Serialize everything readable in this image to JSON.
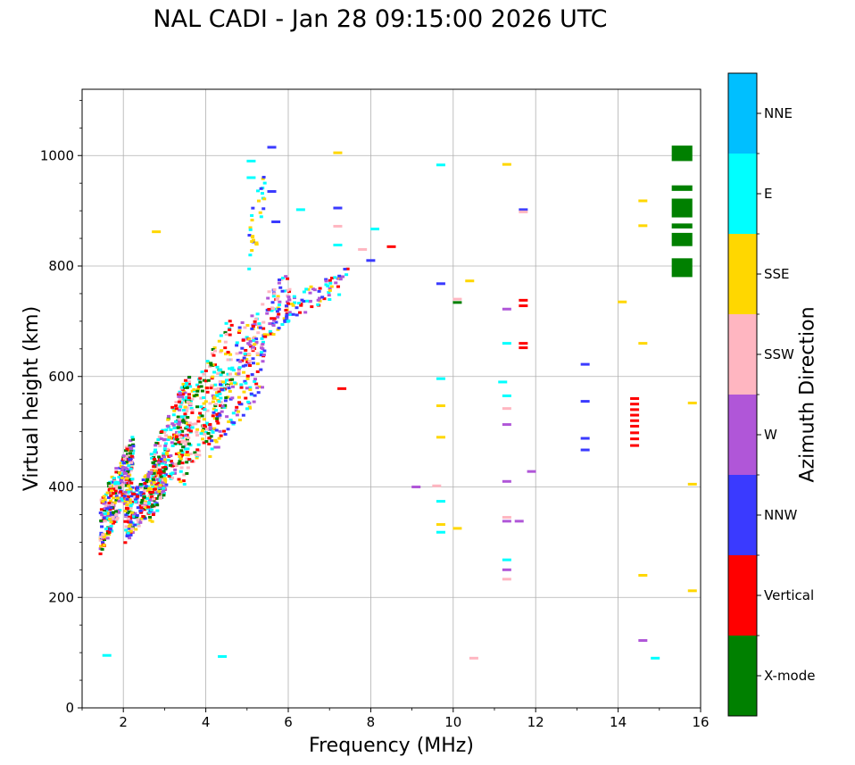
{
  "chart_data": {
    "type": "scatter",
    "title": "NAL CADI - Jan 28 09:15:00 2026 UTC",
    "xlabel": "Frequency (MHz)",
    "ylabel": "Virtual height (km)",
    "xlim": [
      1,
      16
    ],
    "ylim": [
      0,
      1120
    ],
    "xticks": [
      2,
      4,
      6,
      8,
      10,
      12,
      14,
      16
    ],
    "yticks": [
      0,
      200,
      400,
      600,
      800,
      1000
    ],
    "grid": true,
    "colorbar": {
      "label": "Azimuth Direction",
      "categories": [
        {
          "name": "X-mode",
          "color": "#008000"
        },
        {
          "name": "Vertical",
          "color": "#ff0000"
        },
        {
          "name": "NNW",
          "color": "#3a3aff"
        },
        {
          "name": "W",
          "color": "#b056d8"
        },
        {
          "name": "SSW",
          "color": "#ffb6c1"
        },
        {
          "name": "SSE",
          "color": "#ffd700"
        },
        {
          "name": "E",
          "color": "#00ffff"
        },
        {
          "name": "NNE",
          "color": "#00bfff"
        }
      ]
    },
    "clusters": [
      {
        "x_range": [
          1.4,
          2.2
        ],
        "y_range": [
          280,
          500
        ],
        "count": 320,
        "categories": [
          "Vertical",
          "SSE",
          "NNW",
          "SSW",
          "E",
          "X-mode",
          "W"
        ]
      },
      {
        "x_range": [
          2.0,
          3.0
        ],
        "y_range": [
          300,
          470
        ],
        "count": 300,
        "categories": [
          "SSW",
          "Vertical",
          "SSE",
          "E",
          "X-mode",
          "NNW",
          "W"
        ]
      },
      {
        "x_range": [
          2.6,
          3.6
        ],
        "y_range": [
          330,
          620
        ],
        "count": 260,
        "categories": [
          "E",
          "SSE",
          "X-mode",
          "Vertical",
          "SSW",
          "W"
        ]
      },
      {
        "x_range": [
          3.3,
          4.6
        ],
        "y_range": [
          380,
          720
        ],
        "count": 240,
        "categories": [
          "E",
          "X-mode",
          "SSE",
          "Vertical",
          "SSW"
        ]
      },
      {
        "x_range": [
          4.0,
          5.4
        ],
        "y_range": [
          440,
          700
        ],
        "count": 120,
        "categories": [
          "E",
          "SSE",
          "W",
          "Vertical",
          "NNW"
        ]
      },
      {
        "x_range": [
          4.7,
          6.0
        ],
        "y_range": [
          600,
          800
        ],
        "count": 140,
        "categories": [
          "W",
          "NNW",
          "SSE",
          "E",
          "Vertical",
          "SSW"
        ]
      },
      {
        "x_range": [
          5.9,
          7.4
        ],
        "y_range": [
          700,
          800
        ],
        "count": 70,
        "categories": [
          "W",
          "NNW",
          "E",
          "SSE",
          "Vertical"
        ]
      },
      {
        "x_range": [
          5.0,
          5.4
        ],
        "y_range": [
          780,
          1000
        ],
        "count": 30,
        "categories": [
          "E",
          "SSE",
          "NNW"
        ]
      }
    ],
    "points": [
      {
        "x": 1.6,
        "y": 95,
        "c": "E"
      },
      {
        "x": 4.4,
        "y": 93,
        "c": "E"
      },
      {
        "x": 2.8,
        "y": 862,
        "c": "SSE"
      },
      {
        "x": 5.1,
        "y": 990,
        "c": "E"
      },
      {
        "x": 5.1,
        "y": 960,
        "c": "E"
      },
      {
        "x": 5.6,
        "y": 1015,
        "c": "NNW"
      },
      {
        "x": 5.6,
        "y": 935,
        "c": "NNW"
      },
      {
        "x": 5.7,
        "y": 880,
        "c": "NNW"
      },
      {
        "x": 6.3,
        "y": 902,
        "c": "E"
      },
      {
        "x": 7.2,
        "y": 1005,
        "c": "SSE"
      },
      {
        "x": 7.2,
        "y": 905,
        "c": "NNW"
      },
      {
        "x": 7.2,
        "y": 872,
        "c": "SSW"
      },
      {
        "x": 7.2,
        "y": 838,
        "c": "E"
      },
      {
        "x": 7.8,
        "y": 830,
        "c": "SSW"
      },
      {
        "x": 8.1,
        "y": 867,
        "c": "E"
      },
      {
        "x": 8.0,
        "y": 810,
        "c": "NNW"
      },
      {
        "x": 8.5,
        "y": 835,
        "c": "Vertical"
      },
      {
        "x": 7.3,
        "y": 578,
        "c": "Vertical"
      },
      {
        "x": 9.1,
        "y": 400,
        "c": "W"
      },
      {
        "x": 9.6,
        "y": 402,
        "c": "SSW"
      },
      {
        "x": 9.7,
        "y": 983,
        "c": "E"
      },
      {
        "x": 9.7,
        "y": 768,
        "c": "NNW"
      },
      {
        "x": 9.7,
        "y": 596,
        "c": "E"
      },
      {
        "x": 9.7,
        "y": 547,
        "c": "SSE"
      },
      {
        "x": 9.7,
        "y": 490,
        "c": "SSE"
      },
      {
        "x": 9.7,
        "y": 374,
        "c": "E"
      },
      {
        "x": 9.7,
        "y": 332,
        "c": "SSE"
      },
      {
        "x": 9.7,
        "y": 318,
        "c": "E"
      },
      {
        "x": 10.1,
        "y": 740,
        "c": "SSW"
      },
      {
        "x": 10.1,
        "y": 734,
        "c": "X-mode"
      },
      {
        "x": 10.1,
        "y": 325,
        "c": "SSE"
      },
      {
        "x": 10.4,
        "y": 773,
        "c": "SSE"
      },
      {
        "x": 10.5,
        "y": 90,
        "c": "SSW"
      },
      {
        "x": 11.2,
        "y": 590,
        "c": "E"
      },
      {
        "x": 11.3,
        "y": 984,
        "c": "SSE"
      },
      {
        "x": 11.3,
        "y": 722,
        "c": "W"
      },
      {
        "x": 11.3,
        "y": 660,
        "c": "E"
      },
      {
        "x": 11.3,
        "y": 565,
        "c": "E"
      },
      {
        "x": 11.3,
        "y": 542,
        "c": "SSW"
      },
      {
        "x": 11.3,
        "y": 513,
        "c": "W"
      },
      {
        "x": 11.3,
        "y": 410,
        "c": "W"
      },
      {
        "x": 11.3,
        "y": 345,
        "c": "SSW"
      },
      {
        "x": 11.3,
        "y": 338,
        "c": "W"
      },
      {
        "x": 11.3,
        "y": 268,
        "c": "E"
      },
      {
        "x": 11.3,
        "y": 250,
        "c": "W"
      },
      {
        "x": 11.3,
        "y": 233,
        "c": "SSW"
      },
      {
        "x": 11.6,
        "y": 338,
        "c": "W"
      },
      {
        "x": 11.7,
        "y": 902,
        "c": "NNW"
      },
      {
        "x": 11.7,
        "y": 898,
        "c": "SSW"
      },
      {
        "x": 11.7,
        "y": 738,
        "c": "Vertical"
      },
      {
        "x": 11.7,
        "y": 728,
        "c": "Vertical"
      },
      {
        "x": 11.7,
        "y": 660,
        "c": "Vertical"
      },
      {
        "x": 11.7,
        "y": 652,
        "c": "Vertical"
      },
      {
        "x": 11.9,
        "y": 428,
        "c": "W"
      },
      {
        "x": 13.2,
        "y": 622,
        "c": "NNW"
      },
      {
        "x": 13.2,
        "y": 555,
        "c": "NNW"
      },
      {
        "x": 13.2,
        "y": 488,
        "c": "NNW"
      },
      {
        "x": 13.2,
        "y": 467,
        "c": "NNW"
      },
      {
        "x": 14.1,
        "y": 735,
        "c": "SSE"
      },
      {
        "x": 14.4,
        "y": 560,
        "c": "Vertical"
      },
      {
        "x": 14.4,
        "y": 550,
        "c": "Vertical"
      },
      {
        "x": 14.4,
        "y": 540,
        "c": "Vertical"
      },
      {
        "x": 14.4,
        "y": 530,
        "c": "Vertical"
      },
      {
        "x": 14.4,
        "y": 520,
        "c": "Vertical"
      },
      {
        "x": 14.4,
        "y": 510,
        "c": "Vertical"
      },
      {
        "x": 14.4,
        "y": 498,
        "c": "Vertical"
      },
      {
        "x": 14.4,
        "y": 487,
        "c": "Vertical"
      },
      {
        "x": 14.4,
        "y": 475,
        "c": "Vertical"
      },
      {
        "x": 14.6,
        "y": 918,
        "c": "SSE"
      },
      {
        "x": 14.6,
        "y": 873,
        "c": "SSE"
      },
      {
        "x": 14.6,
        "y": 660,
        "c": "SSE"
      },
      {
        "x": 14.6,
        "y": 240,
        "c": "SSE"
      },
      {
        "x": 14.6,
        "y": 122,
        "c": "W"
      },
      {
        "x": 14.9,
        "y": 90,
        "c": "E"
      },
      {
        "x": 15.8,
        "y": 552,
        "c": "SSE"
      },
      {
        "x": 15.8,
        "y": 405,
        "c": "SSE"
      },
      {
        "x": 15.8,
        "y": 212,
        "c": "SSE"
      }
    ],
    "bars": [
      {
        "x_range": [
          15.3,
          15.8
        ],
        "y_range": [
          990,
          1018
        ],
        "c": "X-mode"
      },
      {
        "x_range": [
          15.3,
          15.8
        ],
        "y_range": [
          936,
          946
        ],
        "c": "X-mode"
      },
      {
        "x_range": [
          15.3,
          15.8
        ],
        "y_range": [
          888,
          922
        ],
        "c": "X-mode"
      },
      {
        "x_range": [
          15.3,
          15.8
        ],
        "y_range": [
          868,
          877
        ],
        "c": "X-mode"
      },
      {
        "x_range": [
          15.3,
          15.8
        ],
        "y_range": [
          836,
          860
        ],
        "c": "X-mode"
      },
      {
        "x_range": [
          15.3,
          15.8
        ],
        "y_range": [
          780,
          814
        ],
        "c": "X-mode"
      }
    ]
  }
}
